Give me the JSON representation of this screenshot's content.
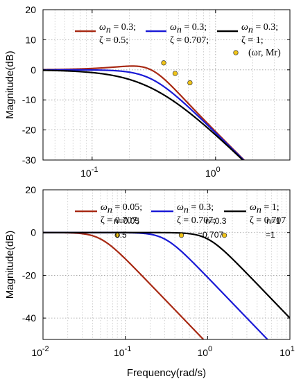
{
  "chart_data": [
    {
      "type": "line",
      "x_scale": "log",
      "xlim": [
        0.04,
        4
      ],
      "ylim": [
        -30,
        20
      ],
      "ylabel": "Magnitude(dB)",
      "xlabel": "",
      "grid": true,
      "x_tick_labels": [
        {
          "x": 0.1,
          "base": "10",
          "exp": "-1"
        },
        {
          "x": 1,
          "base": "10",
          "exp": "0"
        }
      ],
      "y_ticks": [
        20,
        10,
        0,
        -10,
        -20,
        -30
      ],
      "series": [
        {
          "color": "#a82a14",
          "legend_top": "ωn = 0.3;",
          "legend_bottom": "ζ = 0.5;",
          "wn": 0.3,
          "zeta": 0.5,
          "resonance_point": {
            "x": 0.38,
            "y": 2.3
          }
        },
        {
          "color": "#1a1ad6",
          "legend_top": "ωn = 0.3;",
          "legend_bottom": "ζ = 0.707;",
          "wn": 0.3,
          "zeta": 0.707,
          "resonance_point": {
            "x": 0.47,
            "y": -1.2
          }
        },
        {
          "color": "#000000",
          "legend_top": "ωn = 0.3;",
          "legend_bottom": "ζ = 1;",
          "wn": 0.3,
          "zeta": 1.0,
          "resonance_point": {
            "x": 0.62,
            "y": -4.3
          }
        }
      ],
      "marker_legend": "(ωr, Mr)",
      "marker_color": "#f0c419"
    },
    {
      "type": "line",
      "x_scale": "log",
      "xlim": [
        0.01,
        10
      ],
      "ylim": [
        -50,
        20
      ],
      "ylabel": "Magnitude(dB)",
      "xlabel": "Frequency(rad/s)",
      "grid": true,
      "x_tick_labels": [
        {
          "x": 0.01,
          "base": "10",
          "exp": "-2"
        },
        {
          "x": 0.1,
          "base": "10",
          "exp": "-1"
        },
        {
          "x": 1,
          "base": "10",
          "exp": "0"
        },
        {
          "x": 10,
          "base": "10",
          "exp": "1"
        }
      ],
      "y_ticks": [
        20,
        0,
        -20,
        -40
      ],
      "series": [
        {
          "color": "#a82a14",
          "legend_top": "ωn = 0.05;",
          "legend_bottom": "ζ = 0.707;",
          "wn": 0.05,
          "zeta": 0.707,
          "resonance_point": {
            "x": 0.08,
            "y": -1.3
          }
        },
        {
          "color": "#1a1ad6",
          "legend_top": "ωn = 0.3;",
          "legend_bottom": "ζ = 0.707;",
          "wn": 0.3,
          "zeta": 0.707,
          "resonance_point": {
            "x": 0.48,
            "y": -1.3
          }
        },
        {
          "color": "#000000",
          "legend_top": "ωn = 1;",
          "legend_bottom": "ζ = 0.707",
          "wn": 1.0,
          "zeta": 0.707,
          "resonance_point": {
            "x": 1.6,
            "y": -1.3
          }
        }
      ],
      "ghost_labels": [
        "n=0.05",
        "n=0.3",
        "n=1",
        "0.5",
        "=0.707",
        "=1"
      ],
      "marker_color": "#f0c419"
    }
  ]
}
